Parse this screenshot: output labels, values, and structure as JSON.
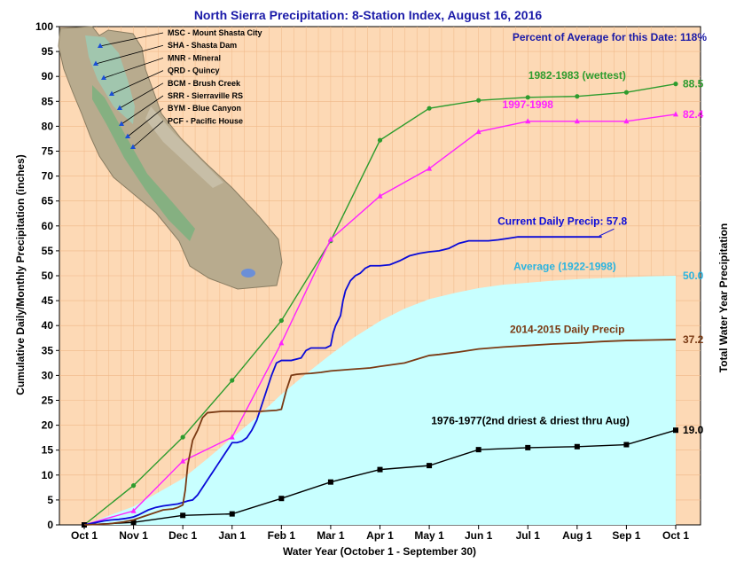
{
  "chart_data": {
    "type": "line",
    "title": "North Sierra Precipitation: 8-Station Index, August 16, 2016",
    "xlabel": "Water Year (October 1 - September 30)",
    "ylabel": "Cumulative Daily/Monthly Precipitation (inches)",
    "ylabel_right": "Total Water Year Precipitation",
    "percent_note": "Percent of Average for this Date: 118%",
    "categories": [
      "Oct 1",
      "Nov 1",
      "Dec 1",
      "Jan 1",
      "Feb 1",
      "Mar 1",
      "Apr 1",
      "May 1",
      "Jun 1",
      "Jul 1",
      "Aug 1",
      "Sep 1",
      "Oct 1"
    ],
    "ylim": [
      0,
      100
    ],
    "yticks": [
      0,
      5,
      10,
      15,
      20,
      25,
      30,
      35,
      40,
      45,
      50,
      55,
      60,
      65,
      70,
      75,
      80,
      85,
      90,
      95,
      100
    ],
    "grid": true,
    "series": [
      {
        "name": "1982-1983 (wettest)",
        "color": "#2e9c2e",
        "marker": "circle",
        "kind": "monthly",
        "values": [
          0,
          7.9,
          17.6,
          29.0,
          41.0,
          57.0,
          77.2,
          83.6,
          85.2,
          85.8,
          86.0,
          86.8,
          88.5
        ],
        "end_label": "88.5"
      },
      {
        "name": "1997-1998",
        "color": "#ff22ff",
        "marker": "triangle",
        "kind": "monthly",
        "values": [
          0,
          2.8,
          12.8,
          17.6,
          36.5,
          57.3,
          66.0,
          71.5,
          78.9,
          81.0,
          81.0,
          81.0,
          82.4
        ],
        "end_label": "82.4"
      },
      {
        "name": "1976-1977(2nd driest & driest thru Aug)",
        "color": "#000000",
        "marker": "square",
        "kind": "monthly",
        "values": [
          0,
          0.5,
          1.9,
          2.2,
          5.3,
          8.6,
          11.1,
          11.9,
          15.1,
          15.5,
          15.7,
          16.1,
          19.0
        ],
        "end_label": "19.0"
      },
      {
        "name": "Current Daily Precip: 57.8",
        "color": "#0a0ad8",
        "kind": "daily",
        "x": [
          0,
          0.1,
          0.25,
          0.4,
          0.55,
          0.7,
          0.85,
          0.95,
          1.0,
          1.1,
          1.2,
          1.3,
          1.45,
          1.6,
          1.75,
          1.9,
          2.0,
          2.1,
          2.2,
          2.3,
          2.4,
          2.5,
          2.6,
          2.7,
          2.8,
          2.9,
          3.0,
          3.1,
          3.2,
          3.3,
          3.4,
          3.5,
          3.6,
          3.7,
          3.8,
          3.9,
          4.0,
          4.2,
          4.4,
          4.5,
          4.6,
          4.7,
          4.8,
          4.9,
          5.0,
          5.05,
          5.1,
          5.2,
          5.25,
          5.3,
          5.4,
          5.5,
          5.6,
          5.7,
          5.8,
          6.0,
          6.2,
          6.4,
          6.6,
          6.8,
          7.0,
          7.2,
          7.4,
          7.5,
          7.6,
          7.8,
          8.0,
          8.2,
          8.4,
          8.6,
          8.8,
          9.0,
          9.5,
          10.0,
          10.4,
          10.5
        ],
        "values": [
          0,
          0.2,
          0.5,
          0.8,
          1.0,
          1.1,
          1.3,
          1.5,
          1.6,
          2.0,
          2.5,
          3.0,
          3.5,
          3.8,
          4.0,
          4.2,
          4.5,
          4.8,
          5.0,
          6.0,
          7.5,
          9.0,
          10.5,
          12.0,
          13.5,
          15.0,
          16.5,
          16.5,
          16.8,
          17.5,
          19.0,
          21.0,
          24.0,
          27.0,
          30.0,
          32.5,
          33.0,
          33.0,
          33.5,
          35.0,
          35.5,
          35.5,
          35.5,
          35.5,
          36.0,
          38.5,
          40.0,
          42.0,
          45.0,
          47.0,
          49.0,
          50.0,
          50.5,
          51.5,
          52.0,
          52.0,
          52.2,
          53.0,
          54.0,
          54.5,
          54.8,
          55.0,
          55.5,
          56.0,
          56.5,
          57.0,
          57.0,
          57.0,
          57.2,
          57.5,
          57.8,
          57.8,
          57.8,
          57.8,
          57.8,
          57.8
        ],
        "end_label": ""
      },
      {
        "name": "2014-2015 Daily Precip",
        "color": "#7a3a14",
        "kind": "daily",
        "x": [
          0,
          0.5,
          0.8,
          1.0,
          1.3,
          1.6,
          1.8,
          1.9,
          2.0,
          2.05,
          2.1,
          2.2,
          2.3,
          2.4,
          2.5,
          2.8,
          3.2,
          3.6,
          3.9,
          4.0,
          4.1,
          4.2,
          4.3,
          4.4,
          4.6,
          4.8,
          5.0,
          5.4,
          5.8,
          6.0,
          6.5,
          7.0,
          7.2,
          7.6,
          8.0,
          8.5,
          9.0,
          9.5,
          10.0,
          10.5,
          11.0,
          11.5,
          12.0
        ],
        "values": [
          0,
          0.2,
          0.6,
          1.0,
          2.0,
          3.0,
          3.2,
          3.5,
          4.0,
          7.0,
          12.0,
          17.0,
          19.0,
          21.5,
          22.5,
          22.8,
          22.8,
          22.8,
          23.0,
          23.2,
          27.0,
          30.0,
          30.2,
          30.3,
          30.4,
          30.6,
          30.9,
          31.2,
          31.5,
          31.8,
          32.5,
          34.0,
          34.2,
          34.7,
          35.3,
          35.7,
          36.0,
          36.3,
          36.5,
          36.8,
          37.0,
          37.1,
          37.2
        ],
        "end_label": "37.2"
      }
    ],
    "average": {
      "name": "Average (1922-1998)",
      "color": "#c8ffff",
      "label_color": "#2ab4e0",
      "x": [
        0,
        1,
        2,
        2.5,
        3,
        3.5,
        4,
        4.5,
        5,
        5.5,
        6,
        6.5,
        7,
        7.5,
        8,
        8.5,
        9,
        9.5,
        10,
        10.5,
        11,
        11.5,
        12
      ],
      "values": [
        0,
        3.7,
        9.3,
        13.3,
        17.5,
        21.6,
        26.2,
        30.3,
        34.2,
        37.8,
        40.9,
        43.4,
        45.3,
        46.5,
        47.5,
        48.2,
        48.6,
        49.0,
        49.3,
        49.5,
        49.7,
        49.9,
        50.0
      ],
      "end_label": "50.0"
    },
    "stations": [
      {
        "code": "MSC",
        "name": "Mount Shasta City",
        "label": "MSC - Mount Shasta City"
      },
      {
        "code": "SHA",
        "name": "Shasta Dam",
        "label": "SHA - Shasta Dam"
      },
      {
        "code": "MNR",
        "name": "Mineral",
        "label": "MNR - Mineral"
      },
      {
        "code": "QRD",
        "name": "Quincy",
        "label": "QRD - Quincy"
      },
      {
        "code": "BCM",
        "name": "Brush Creek",
        "label": "BCM - Brush Creek"
      },
      {
        "code": "SRR",
        "name": "Sierraville RS",
        "label": "SRR - Sierraville RS"
      },
      {
        "code": "BYM",
        "name": "Blue Canyon",
        "label": "BYM - Blue Canyon"
      },
      {
        "code": "PCF",
        "name": "Pacific House",
        "label": "PCF - Pacific House"
      }
    ],
    "colors": {
      "plot_bg": "#fdd9b5",
      "grid": "#f0b888",
      "average_fill": "#c8ffff",
      "map_land": "#b8ab8e",
      "map_valley": "#7fb07f",
      "map_sierra": "#9fc7b0"
    }
  }
}
